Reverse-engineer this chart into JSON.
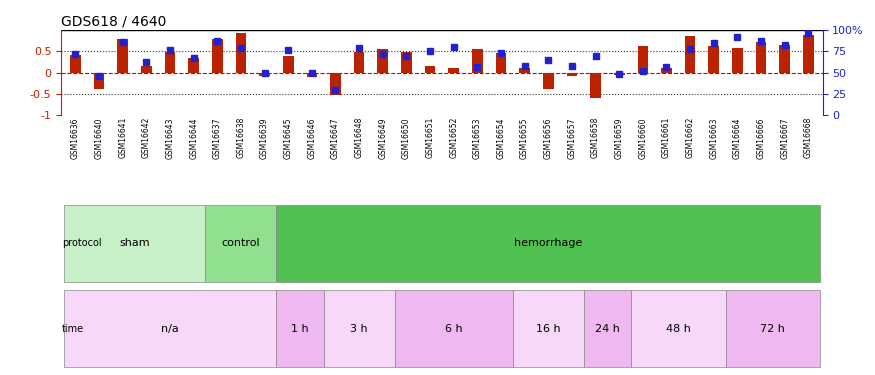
{
  "title": "GDS618 / 4640",
  "samples": [
    "GSM16636",
    "GSM16640",
    "GSM16641",
    "GSM16642",
    "GSM16643",
    "GSM16644",
    "GSM16637",
    "GSM16638",
    "GSM16639",
    "GSM16645",
    "GSM16646",
    "GSM16647",
    "GSM16648",
    "GSM16649",
    "GSM16650",
    "GSM16651",
    "GSM16652",
    "GSM16653",
    "GSM16654",
    "GSM16655",
    "GSM16656",
    "GSM16657",
    "GSM16658",
    "GSM16659",
    "GSM16660",
    "GSM16661",
    "GSM16662",
    "GSM16663",
    "GSM16664",
    "GSM16666",
    "GSM16667",
    "GSM16668"
  ],
  "log_ratio": [
    0.42,
    -0.38,
    0.78,
    0.15,
    0.48,
    0.35,
    0.8,
    0.92,
    -0.09,
    0.38,
    -0.1,
    -0.52,
    0.48,
    0.55,
    0.48,
    0.15,
    0.1,
    0.55,
    0.47,
    0.12,
    -0.38,
    -0.08,
    -0.6,
    -0.05,
    0.62,
    0.1,
    0.85,
    0.62,
    0.57,
    0.72,
    0.65,
    0.88
  ],
  "percentile": [
    0.44,
    -0.08,
    0.72,
    0.26,
    0.52,
    0.35,
    0.75,
    0.58,
    0.0,
    0.52,
    0.0,
    -0.4,
    0.57,
    0.44,
    0.38,
    0.5,
    0.6,
    0.14,
    0.46,
    0.16,
    0.3,
    0.16,
    0.38,
    -0.04,
    0.04,
    0.14,
    0.55,
    0.7,
    0.84,
    0.74,
    0.66,
    0.92
  ],
  "protocol_groups": [
    {
      "label": "sham",
      "start": 0,
      "end": 5,
      "color": "#c8f0c8"
    },
    {
      "label": "control",
      "start": 6,
      "end": 8,
      "color": "#90e090"
    },
    {
      "label": "hemorrhage",
      "start": 9,
      "end": 31,
      "color": "#50c050"
    }
  ],
  "time_groups": [
    {
      "label": "n/a",
      "start": 0,
      "end": 8,
      "color": "#f8d8f8"
    },
    {
      "label": "1 h",
      "start": 9,
      "end": 10,
      "color": "#f0b8f0"
    },
    {
      "label": "3 h",
      "start": 11,
      "end": 13,
      "color": "#f8d8f8"
    },
    {
      "label": "6 h",
      "start": 14,
      "end": 18,
      "color": "#f0b8f0"
    },
    {
      "label": "16 h",
      "start": 19,
      "end": 21,
      "color": "#f8d8f8"
    },
    {
      "label": "24 h",
      "start": 22,
      "end": 23,
      "color": "#f0b8f0"
    },
    {
      "label": "48 h",
      "start": 24,
      "end": 27,
      "color": "#f8d8f8"
    },
    {
      "label": "72 h",
      "start": 28,
      "end": 31,
      "color": "#f0b8f0"
    }
  ],
  "bar_color": "#bb2200",
  "dot_color": "#2222cc",
  "y_ref_color": "#cc0000",
  "dotted_color": "#333333",
  "right_axis_color": "#2222cc",
  "background": "#ffffff",
  "ylabel_left": "",
  "ylabel_right": "",
  "ylim": [
    -1,
    1
  ],
  "yticks_left": [
    -1,
    -0.5,
    0,
    0.5,
    1
  ],
  "yticks_right_vals": [
    0,
    25,
    50,
    75,
    100
  ],
  "yticks_right_labels": [
    "0",
    "25",
    "50",
    "75",
    "100%"
  ]
}
